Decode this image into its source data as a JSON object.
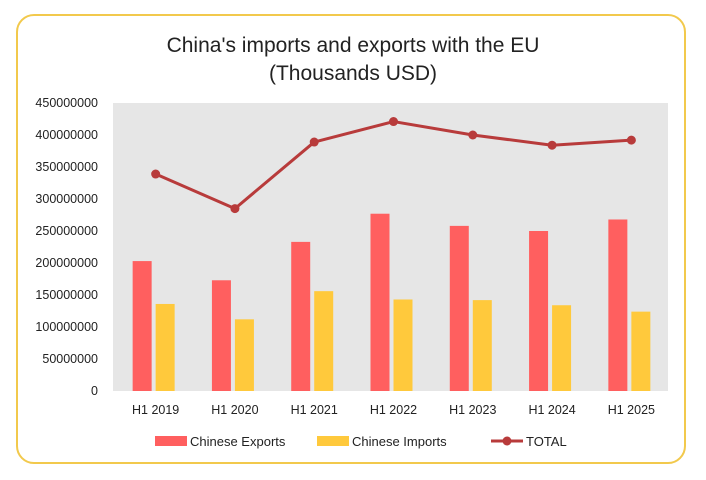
{
  "chart_data": {
    "type": "bar",
    "title": "China's imports and exports with the EU",
    "subtitle": "(Thousands USD)",
    "categories": [
      "H1 2019",
      "H1 2020",
      "H1 2021",
      "H1 2022",
      "H1 2023",
      "H1 2024",
      "H1 2025"
    ],
    "series": [
      {
        "name": "Chinese Exports",
        "kind": "bar",
        "color": "#ff5f5f",
        "values": [
          203000000,
          173000000,
          233000000,
          277000000,
          258000000,
          250000000,
          268000000
        ]
      },
      {
        "name": "Chinese Imports",
        "kind": "bar",
        "color": "#ffc93c",
        "values": [
          136000000,
          112000000,
          156000000,
          143000000,
          142000000,
          134000000,
          124000000
        ]
      },
      {
        "name": "TOTAL",
        "kind": "line",
        "color": "#b83b3b",
        "values": [
          339000000,
          285000000,
          389000000,
          421000000,
          400000000,
          384000000,
          392000000
        ]
      }
    ],
    "yticks": [
      "0",
      "50000000",
      "100000000",
      "150000000",
      "200000000",
      "250000000",
      "300000000",
      "350000000",
      "400000000",
      "450000000"
    ],
    "ylim": [
      0,
      450000000
    ],
    "xlabel": "",
    "ylabel": "",
    "grid": false,
    "plot_background": "#e6e6e6",
    "legend": "bottom"
  }
}
